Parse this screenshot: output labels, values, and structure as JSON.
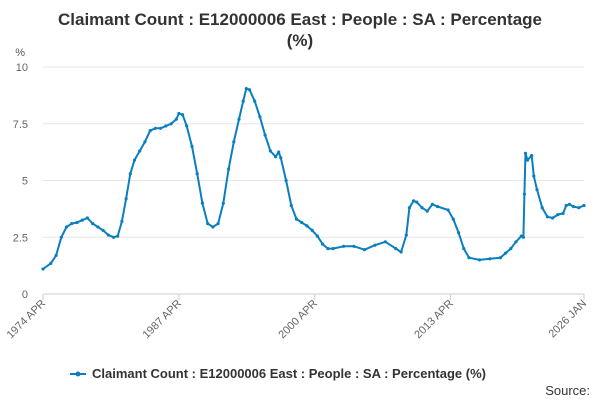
{
  "chart_data": {
    "type": "line",
    "title_line1": "Claimant Count : E12000006 East : People : SA : Percentage",
    "title_line2": "(%)",
    "ylabel": "%",
    "ylim": [
      0,
      10
    ],
    "yticks": [
      "0",
      "2.5",
      "5",
      "7.5",
      "10"
    ],
    "ytick_values": [
      0,
      2.5,
      5,
      7.5,
      10
    ],
    "xlim": [
      1974.25,
      2026.0
    ],
    "xticks": [
      "1974 APR",
      "1987 APR",
      "2000 APR",
      "2013 APR",
      "2026 JAN"
    ],
    "xtick_values": [
      1974.25,
      1987.25,
      2000.25,
      2013.25,
      2026.0
    ],
    "grid": "horizontal",
    "legend_position": "bottom",
    "series": [
      {
        "name": "Claimant Count : E12000006 East : People : SA : Percentage (%)",
        "color": "#0a7fbf",
        "points": [
          [
            1974.25,
            1.1
          ],
          [
            1975.0,
            1.35
          ],
          [
            1975.5,
            1.7
          ],
          [
            1976.0,
            2.5
          ],
          [
            1976.5,
            2.95
          ],
          [
            1977.0,
            3.1
          ],
          [
            1977.5,
            3.15
          ],
          [
            1978.0,
            3.25
          ],
          [
            1978.5,
            3.35
          ],
          [
            1979.0,
            3.1
          ],
          [
            1979.5,
            2.95
          ],
          [
            1980.0,
            2.8
          ],
          [
            1980.5,
            2.6
          ],
          [
            1981.0,
            2.5
          ],
          [
            1981.4,
            2.55
          ],
          [
            1981.8,
            3.2
          ],
          [
            1982.2,
            4.2
          ],
          [
            1982.6,
            5.3
          ],
          [
            1983.0,
            5.9
          ],
          [
            1983.5,
            6.3
          ],
          [
            1984.0,
            6.7
          ],
          [
            1984.5,
            7.2
          ],
          [
            1985.0,
            7.3
          ],
          [
            1985.5,
            7.3
          ],
          [
            1986.0,
            7.4
          ],
          [
            1986.5,
            7.5
          ],
          [
            1987.0,
            7.7
          ],
          [
            1987.25,
            7.95
          ],
          [
            1987.6,
            7.9
          ],
          [
            1988.0,
            7.4
          ],
          [
            1988.5,
            6.5
          ],
          [
            1989.0,
            5.3
          ],
          [
            1989.5,
            4.0
          ],
          [
            1990.0,
            3.1
          ],
          [
            1990.5,
            2.95
          ],
          [
            1991.0,
            3.1
          ],
          [
            1991.5,
            4.0
          ],
          [
            1992.0,
            5.5
          ],
          [
            1992.5,
            6.7
          ],
          [
            1993.0,
            7.7
          ],
          [
            1993.4,
            8.5
          ],
          [
            1993.7,
            9.05
          ],
          [
            1994.0,
            9.0
          ],
          [
            1994.5,
            8.5
          ],
          [
            1995.0,
            7.8
          ],
          [
            1995.5,
            7.0
          ],
          [
            1996.0,
            6.3
          ],
          [
            1996.5,
            6.05
          ],
          [
            1996.8,
            6.25
          ],
          [
            1997.0,
            6.0
          ],
          [
            1997.5,
            5.0
          ],
          [
            1998.0,
            3.9
          ],
          [
            1998.5,
            3.3
          ],
          [
            1999.0,
            3.15
          ],
          [
            1999.5,
            3.0
          ],
          [
            2000.0,
            2.8
          ],
          [
            2000.5,
            2.55
          ],
          [
            2001.0,
            2.2
          ],
          [
            2001.5,
            2.0
          ],
          [
            2002.0,
            2.0
          ],
          [
            2003.0,
            2.1
          ],
          [
            2004.0,
            2.1
          ],
          [
            2005.0,
            1.95
          ],
          [
            2006.0,
            2.15
          ],
          [
            2007.0,
            2.3
          ],
          [
            2008.0,
            2.0
          ],
          [
            2008.5,
            1.85
          ],
          [
            2009.0,
            2.6
          ],
          [
            2009.3,
            3.8
          ],
          [
            2009.7,
            4.1
          ],
          [
            2010.0,
            4.05
          ],
          [
            2010.5,
            3.8
          ],
          [
            2011.0,
            3.65
          ],
          [
            2011.5,
            3.95
          ],
          [
            2012.0,
            3.85
          ],
          [
            2013.0,
            3.7
          ],
          [
            2013.5,
            3.3
          ],
          [
            2014.0,
            2.7
          ],
          [
            2014.5,
            2.0
          ],
          [
            2015.0,
            1.6
          ],
          [
            2016.0,
            1.5
          ],
          [
            2017.0,
            1.55
          ],
          [
            2018.0,
            1.6
          ],
          [
            2018.5,
            1.8
          ],
          [
            2019.0,
            2.0
          ],
          [
            2019.5,
            2.3
          ],
          [
            2020.0,
            2.55
          ],
          [
            2020.2,
            2.5
          ],
          [
            2020.3,
            4.4
          ],
          [
            2020.4,
            6.2
          ],
          [
            2020.6,
            5.9
          ],
          [
            2021.0,
            6.1
          ],
          [
            2021.2,
            5.2
          ],
          [
            2021.5,
            4.6
          ],
          [
            2022.0,
            3.8
          ],
          [
            2022.5,
            3.4
          ],
          [
            2023.0,
            3.35
          ],
          [
            2023.5,
            3.5
          ],
          [
            2024.0,
            3.55
          ],
          [
            2024.3,
            3.9
          ],
          [
            2024.6,
            3.95
          ],
          [
            2025.0,
            3.85
          ],
          [
            2025.5,
            3.8
          ],
          [
            2026.0,
            3.9
          ]
        ]
      }
    ]
  },
  "legend": {
    "label": "Claimant Count : E12000006 East : People : SA : Percentage (%)"
  },
  "source_label": "Source:"
}
